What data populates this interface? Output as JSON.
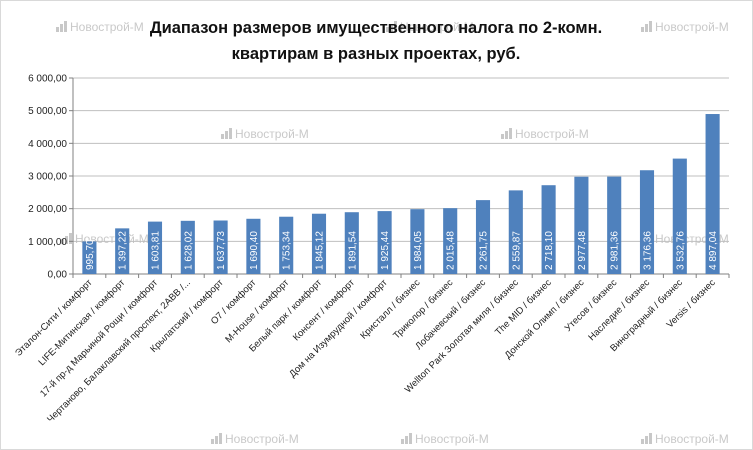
{
  "watermark": {
    "text": "Новострой-М",
    "color": "#c8c8c8"
  },
  "chart_data": {
    "type": "bar",
    "title_lines": [
      "Диапазон размеров имущественного налога по 2-комн.",
      "квартирам в разных проектах, руб."
    ],
    "xlabel": "",
    "ylabel": "",
    "ylim": [
      0,
      6000
    ],
    "y_ticks": [
      0,
      1000,
      2000,
      3000,
      4000,
      5000,
      6000
    ],
    "y_tick_labels": [
      "0,00",
      "1 000,00",
      "2 000,00",
      "3 000,00",
      "4 000,00",
      "5 000,00",
      "6 000,00"
    ],
    "grid": true,
    "legend": "none",
    "bar_color": "#4f81bd",
    "categories": [
      "Эталон-Сити / комфорт",
      "LIFE-Митинская / комфорт",
      "17-й пр-д Марьиной Рощи / комфорт",
      "Чертаново, Балаклавский проспект, 2АВВ /...",
      "Крылатский / комфорт",
      "O7 / комфорт",
      "M-House / комфорт",
      "Белый парк / комфорт",
      "Консент / комфорт",
      "Дом на Изумрудной / комфорт",
      "Кристалл / бизнес",
      "Триколор / бизнес",
      "Лобачевский / бизнес",
      "Wellton Park Золотая миля / бизнес",
      "The MID / бизнес",
      "Донской Олимп / бизнес",
      "Утесов / бизнес",
      "Наследие / бизнес",
      "Виноградный / бизнес",
      "Versis / бизнес"
    ],
    "values": [
      995.7,
      1397.22,
      1603.81,
      1628.02,
      1637.73,
      1690.4,
      1753.34,
      1845.12,
      1891.54,
      1925.44,
      1984.05,
      2015.48,
      2261.75,
      2559.87,
      2718.1,
      2977.48,
      2981.36,
      3176.36,
      3532.76,
      4897.04
    ],
    "value_labels": [
      "995,70",
      "1 397,22",
      "1 603,81",
      "1 628,02",
      "1 637,73",
      "1 690,40",
      "1 753,34",
      "1 845,12",
      "1 891,54",
      "1 925,44",
      "1 984,05",
      "2 015,48",
      "2 261,75",
      "2 559,87",
      "2 718,10",
      "2 977,48",
      "2 981,36",
      "3 176,36",
      "3 532,76",
      "4 897,04"
    ]
  }
}
